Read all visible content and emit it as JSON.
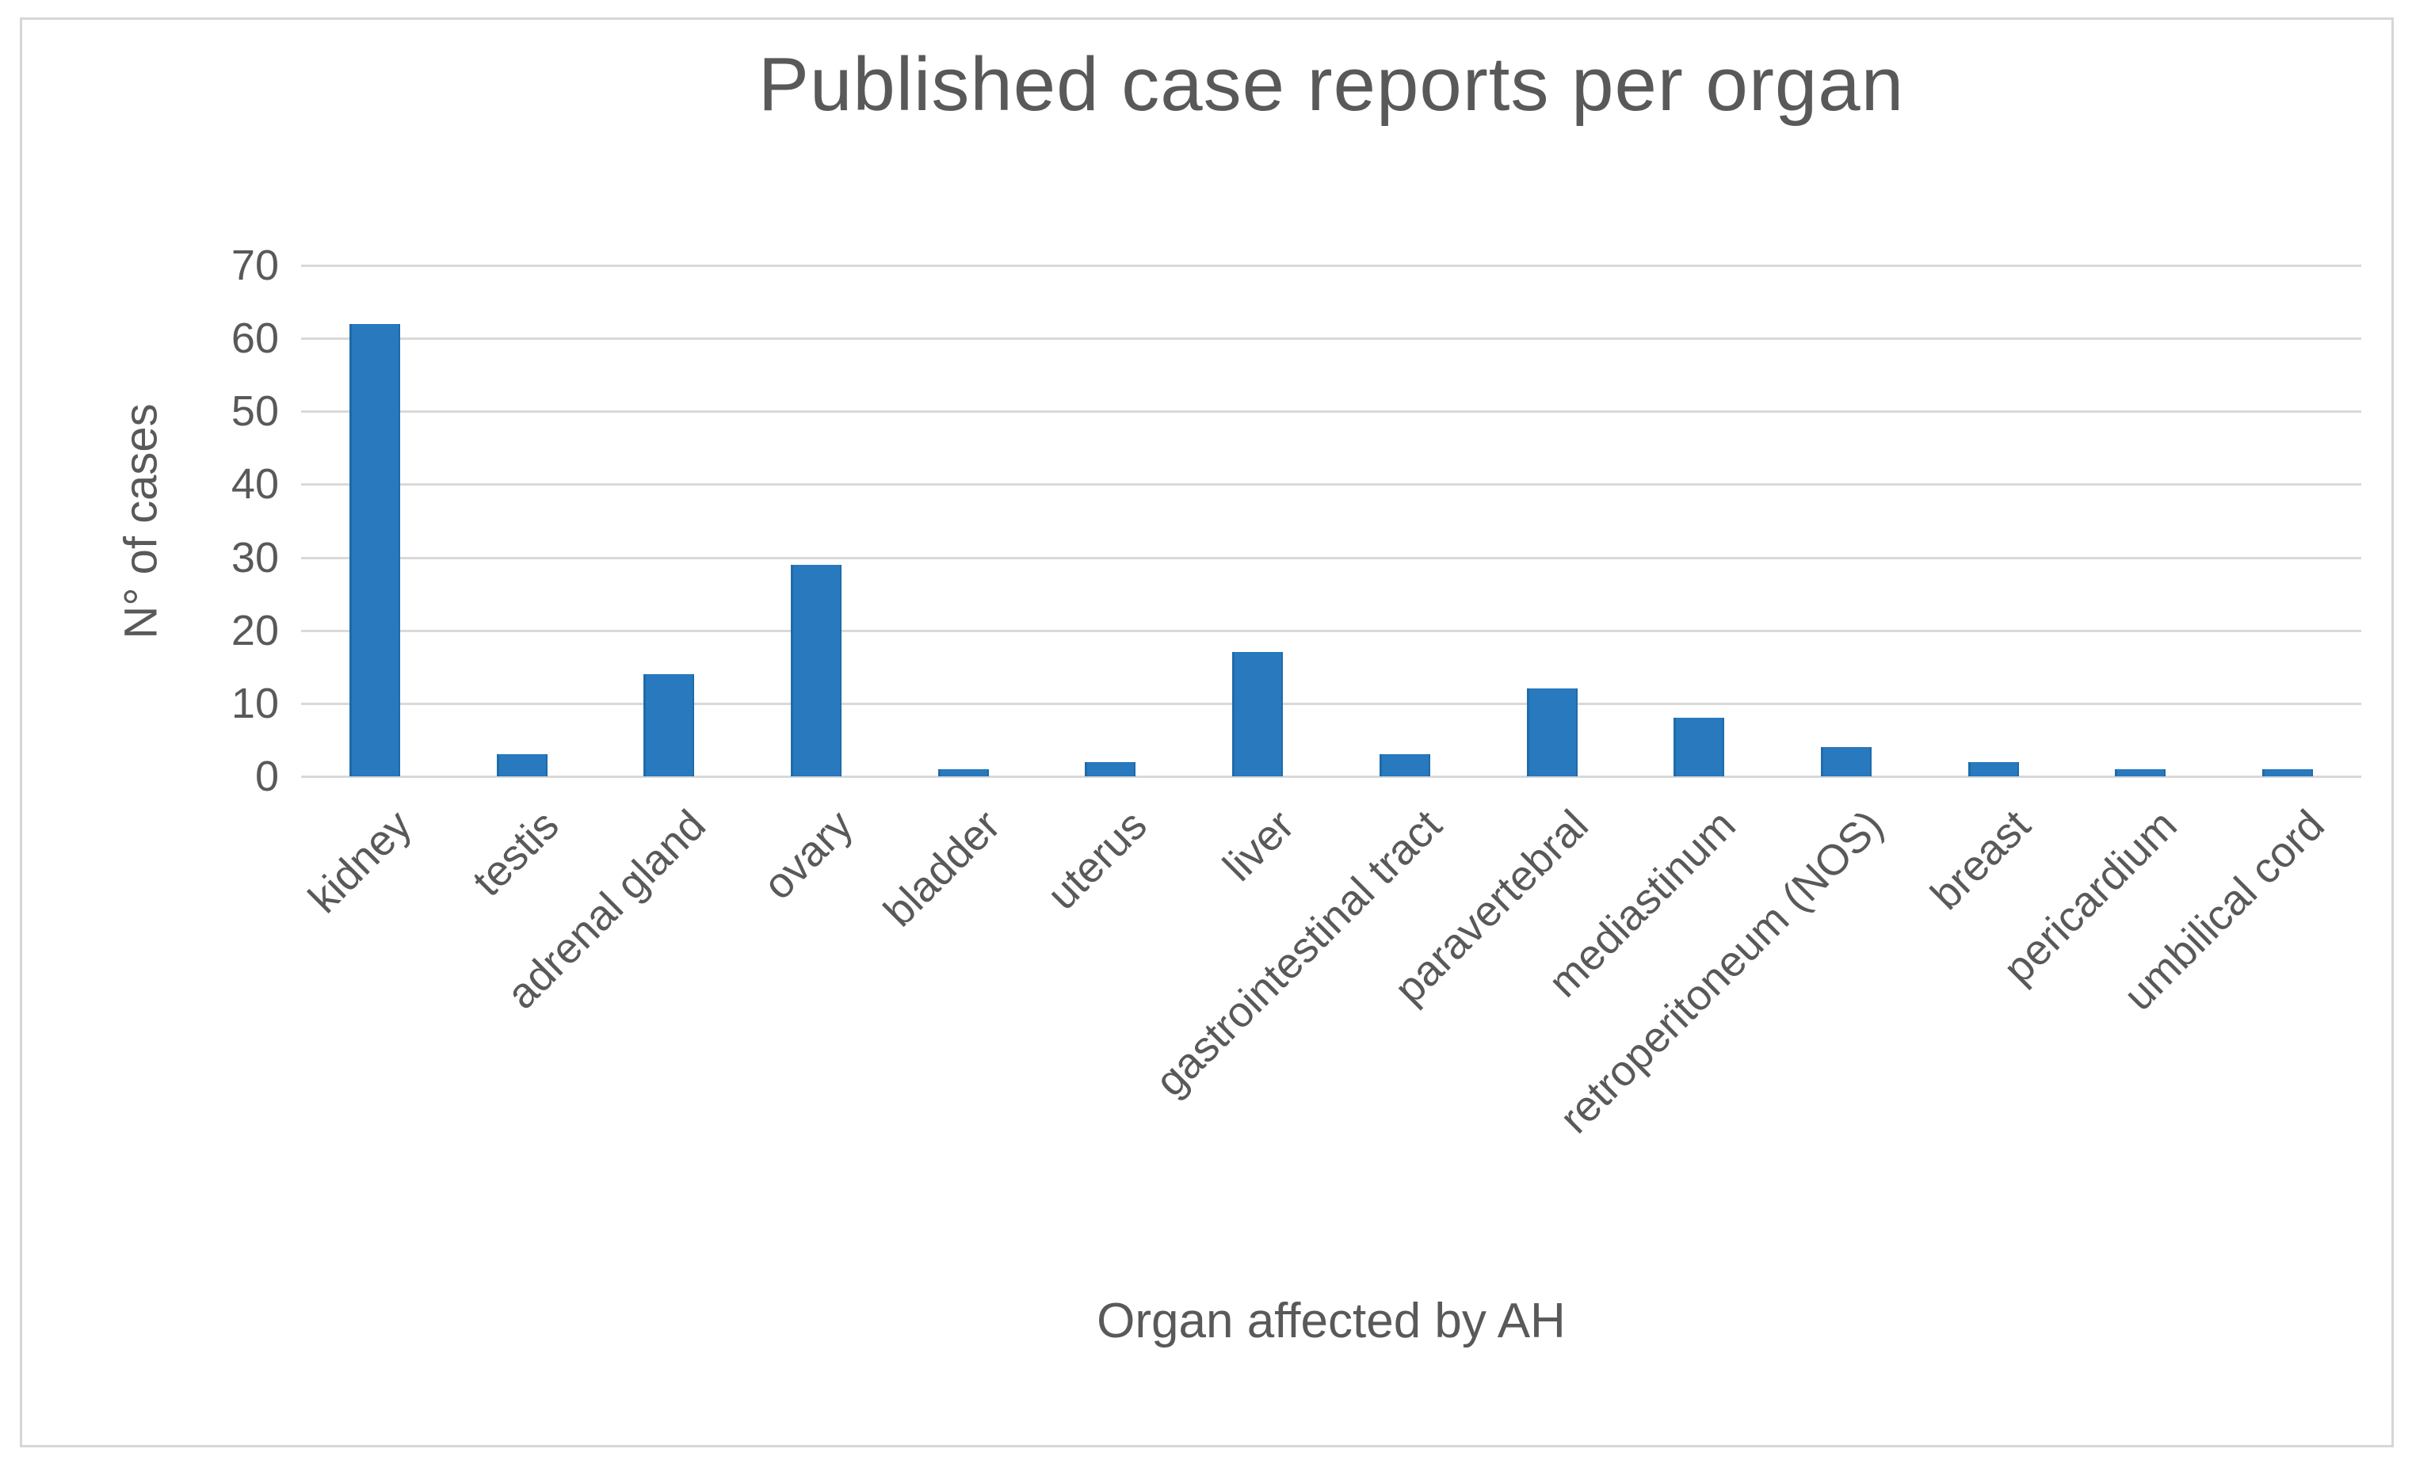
{
  "figure": {
    "title": "Published case reports per organ"
  },
  "chart_data": {
    "type": "bar",
    "title": "Published case reports per organ",
    "xlabel": "Organ affected by AH",
    "ylabel": "N° of cases",
    "categories": [
      "kidney",
      "testis",
      "adrenal gland",
      "ovary",
      "bladder",
      "uterus",
      "liver",
      "gastrointestinal tract",
      "paravertebral",
      "mediastinum",
      "retroperitoneum (NOS)",
      "breast",
      "pericardium",
      "umbilical cord"
    ],
    "values": [
      62,
      3,
      14,
      29,
      1,
      2,
      17,
      3,
      12,
      8,
      4,
      2,
      1,
      1
    ],
    "yticks": [
      0,
      10,
      20,
      30,
      40,
      50,
      60,
      70
    ],
    "ylim": [
      0,
      70
    ],
    "grid": "horizontal",
    "legend_position": "none",
    "bar_color": "#2879BE",
    "bar_edge_color": "#1E6BAB",
    "gridline_color": "#D9D9D9",
    "text_color": "#595959",
    "background_color": "#FFFFFF",
    "border_color": "#D6D6D6"
  }
}
